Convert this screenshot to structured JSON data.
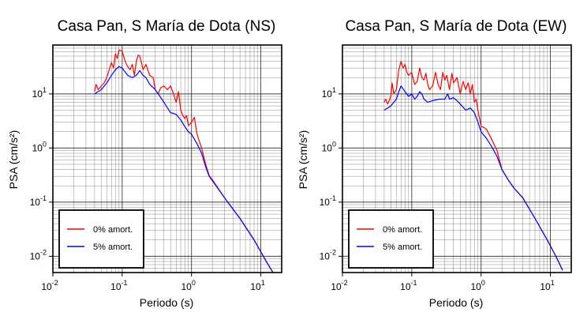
{
  "chart_data": [
    {
      "type": "line",
      "title": "Casa Pan, S María de Dota (NS)",
      "xlabel": "Periodo (s)",
      "ylabel": "PSA (cm/s²)",
      "xscale": "log",
      "yscale": "log",
      "xlim": [
        0.01,
        20
      ],
      "ylim": [
        0.005,
        80
      ],
      "xticks": [
        {
          "base": "10",
          "exp": "-2"
        },
        {
          "base": "10",
          "exp": "-1"
        },
        {
          "base": "10",
          "exp": "0"
        },
        {
          "base": "10",
          "exp": "1"
        }
      ],
      "yticks": [
        {
          "base": "10",
          "exp": "-2"
        },
        {
          "base": "10",
          "exp": "-1"
        },
        {
          "base": "10",
          "exp": "0"
        },
        {
          "base": "10",
          "exp": "1"
        }
      ],
      "grid": true,
      "legend_position": "bottom-left",
      "series": [
        {
          "name": "0% amort.",
          "color": "#ff0000",
          "points": [
            [
              0.04,
              11
            ],
            [
              0.042,
              15
            ],
            [
              0.045,
              12
            ],
            [
              0.05,
              14
            ],
            [
              0.055,
              16
            ],
            [
              0.06,
              20
            ],
            [
              0.065,
              28
            ],
            [
              0.07,
              38
            ],
            [
              0.075,
              30
            ],
            [
              0.08,
              55
            ],
            [
              0.085,
              45
            ],
            [
              0.09,
              65
            ],
            [
              0.1,
              62
            ],
            [
              0.11,
              40
            ],
            [
              0.12,
              32
            ],
            [
              0.13,
              28
            ],
            [
              0.14,
              35
            ],
            [
              0.15,
              22
            ],
            [
              0.16,
              40
            ],
            [
              0.17,
              52
            ],
            [
              0.18,
              50
            ],
            [
              0.2,
              28
            ],
            [
              0.22,
              35
            ],
            [
              0.25,
              22
            ],
            [
              0.28,
              20
            ],
            [
              0.3,
              12
            ],
            [
              0.33,
              10
            ],
            [
              0.36,
              13
            ],
            [
              0.4,
              14
            ],
            [
              0.45,
              12
            ],
            [
              0.5,
              14
            ],
            [
              0.55,
              10
            ],
            [
              0.6,
              7
            ],
            [
              0.65,
              11
            ],
            [
              0.7,
              5
            ],
            [
              0.75,
              4
            ],
            [
              0.8,
              3.5
            ],
            [
              0.85,
              4
            ],
            [
              0.9,
              2.6
            ],
            [
              1.0,
              3
            ],
            [
              1.1,
              3.7
            ],
            [
              1.2,
              1.8
            ],
            [
              1.4,
              1.0
            ],
            [
              1.6,
              0.5
            ],
            [
              1.8,
              0.31
            ],
            [
              2.0,
              0.26
            ],
            [
              3.0,
              0.12
            ],
            [
              5.0,
              0.05
            ],
            [
              8.0,
              0.02
            ],
            [
              12.0,
              0.008
            ],
            [
              15.0,
              0.005
            ]
          ]
        },
        {
          "name": "5% amort.",
          "color": "#0000ff",
          "points": [
            [
              0.04,
              10
            ],
            [
              0.05,
              12
            ],
            [
              0.06,
              16
            ],
            [
              0.07,
              22
            ],
            [
              0.08,
              28
            ],
            [
              0.09,
              32
            ],
            [
              0.1,
              30
            ],
            [
              0.12,
              22
            ],
            [
              0.14,
              20
            ],
            [
              0.16,
              22
            ],
            [
              0.18,
              27
            ],
            [
              0.2,
              22
            ],
            [
              0.22,
              20
            ],
            [
              0.25,
              15
            ],
            [
              0.3,
              12
            ],
            [
              0.35,
              9
            ],
            [
              0.4,
              7
            ],
            [
              0.45,
              5.5
            ],
            [
              0.5,
              4.5
            ],
            [
              0.6,
              4.2
            ],
            [
              0.7,
              3.3
            ],
            [
              0.8,
              2.5
            ],
            [
              0.9,
              2
            ],
            [
              1.0,
              1.8
            ],
            [
              1.2,
              1.2
            ],
            [
              1.4,
              0.8
            ],
            [
              1.6,
              0.45
            ],
            [
              1.8,
              0.3
            ],
            [
              2.0,
              0.25
            ],
            [
              3.0,
              0.12
            ],
            [
              5.0,
              0.05
            ],
            [
              8.0,
              0.02
            ],
            [
              12.0,
              0.008
            ],
            [
              15.0,
              0.005
            ]
          ]
        }
      ]
    },
    {
      "type": "line",
      "title": "Casa Pan, S María de Dota (EW)",
      "xlabel": "Periodo (s)",
      "ylabel": "PSA (cm/s²)",
      "xscale": "log",
      "yscale": "log",
      "xlim": [
        0.01,
        20
      ],
      "ylim": [
        0.005,
        80
      ],
      "xticks": [
        {
          "base": "10",
          "exp": "-2"
        },
        {
          "base": "10",
          "exp": "-1"
        },
        {
          "base": "10",
          "exp": "0"
        },
        {
          "base": "10",
          "exp": "1"
        }
      ],
      "yticks": [
        {
          "base": "10",
          "exp": "-2"
        },
        {
          "base": "10",
          "exp": "-1"
        },
        {
          "base": "10",
          "exp": "0"
        },
        {
          "base": "10",
          "exp": "1"
        }
      ],
      "grid": true,
      "legend_position": "bottom-left",
      "series": [
        {
          "name": "0% amort.",
          "color": "#ff0000",
          "points": [
            [
              0.04,
              7
            ],
            [
              0.042,
              8
            ],
            [
              0.045,
              6.5
            ],
            [
              0.05,
              9
            ],
            [
              0.052,
              16
            ],
            [
              0.055,
              10
            ],
            [
              0.06,
              12
            ],
            [
              0.065,
              28
            ],
            [
              0.07,
              40
            ],
            [
              0.075,
              30
            ],
            [
              0.08,
              35
            ],
            [
              0.085,
              25
            ],
            [
              0.09,
              22
            ],
            [
              0.1,
              25
            ],
            [
              0.11,
              15
            ],
            [
              0.12,
              17
            ],
            [
              0.13,
              30
            ],
            [
              0.14,
              20
            ],
            [
              0.15,
              18
            ],
            [
              0.16,
              24
            ],
            [
              0.17,
              15
            ],
            [
              0.18,
              12
            ],
            [
              0.2,
              14
            ],
            [
              0.22,
              25
            ],
            [
              0.24,
              15
            ],
            [
              0.26,
              12
            ],
            [
              0.28,
              25
            ],
            [
              0.3,
              18
            ],
            [
              0.32,
              22
            ],
            [
              0.35,
              12
            ],
            [
              0.38,
              24
            ],
            [
              0.4,
              16
            ],
            [
              0.45,
              20
            ],
            [
              0.5,
              10
            ],
            [
              0.55,
              17
            ],
            [
              0.6,
              12
            ],
            [
              0.65,
              16
            ],
            [
              0.7,
              10
            ],
            [
              0.75,
              15
            ],
            [
              0.8,
              7
            ],
            [
              0.85,
              8
            ],
            [
              0.9,
              5
            ],
            [
              1.0,
              2.5
            ],
            [
              1.1,
              2.4
            ],
            [
              1.2,
              2.2
            ],
            [
              1.4,
              1.5
            ],
            [
              1.7,
              0.9
            ],
            [
              2.0,
              0.4
            ],
            [
              2.5,
              0.25
            ],
            [
              3.0,
              0.18
            ],
            [
              4.0,
              0.12
            ],
            [
              6.0,
              0.05
            ],
            [
              9.0,
              0.02
            ],
            [
              12.0,
              0.01
            ],
            [
              15.0,
              0.0055
            ]
          ]
        },
        {
          "name": "5% amort.",
          "color": "#0000ff",
          "points": [
            [
              0.04,
              5
            ],
            [
              0.05,
              6
            ],
            [
              0.06,
              8
            ],
            [
              0.065,
              11
            ],
            [
              0.07,
              14
            ],
            [
              0.08,
              11
            ],
            [
              0.09,
              9
            ],
            [
              0.1,
              10
            ],
            [
              0.11,
              8
            ],
            [
              0.12,
              9
            ],
            [
              0.13,
              11
            ],
            [
              0.14,
              10
            ],
            [
              0.15,
              8
            ],
            [
              0.17,
              7
            ],
            [
              0.2,
              7.5
            ],
            [
              0.25,
              8
            ],
            [
              0.3,
              8
            ],
            [
              0.33,
              10
            ],
            [
              0.35,
              8
            ],
            [
              0.4,
              8.5
            ],
            [
              0.45,
              7.5
            ],
            [
              0.5,
              6.5
            ],
            [
              0.6,
              5
            ],
            [
              0.7,
              5.5
            ],
            [
              0.8,
              4.5
            ],
            [
              0.9,
              3
            ],
            [
              1.0,
              2
            ],
            [
              1.2,
              1.5
            ],
            [
              1.4,
              1.1
            ],
            [
              1.7,
              0.7
            ],
            [
              2.0,
              0.4
            ],
            [
              2.5,
              0.25
            ],
            [
              3.0,
              0.18
            ],
            [
              4.0,
              0.12
            ],
            [
              6.0,
              0.05
            ],
            [
              9.0,
              0.02
            ],
            [
              12.0,
              0.01
            ],
            [
              15.0,
              0.0055
            ]
          ]
        }
      ]
    }
  ]
}
